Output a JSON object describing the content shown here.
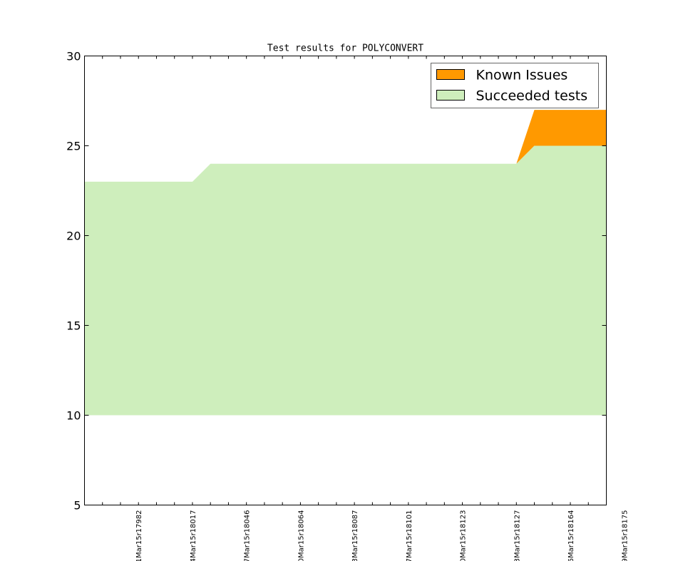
{
  "chart_data": {
    "type": "area",
    "title": "Test results for POLYCONVERT",
    "xlabel": "",
    "ylabel": "",
    "ylim": [
      5,
      30
    ],
    "yticks": [
      5,
      10,
      15,
      20,
      25,
      30
    ],
    "grid": false,
    "legend_position": "top-right",
    "x_index_range": [
      0,
      29
    ],
    "xtick_labels": [
      {
        "index": 3,
        "label": "1Mar15r17982"
      },
      {
        "index": 6,
        "label": "4Mar15r18017"
      },
      {
        "index": 9,
        "label": "7Mar15r18046"
      },
      {
        "index": 12,
        "label": "0Mar15r18064"
      },
      {
        "index": 15,
        "label": "3Mar15r18087"
      },
      {
        "index": 18,
        "label": "7Mar15r18101"
      },
      {
        "index": 21,
        "label": "0Mar15r18123"
      },
      {
        "index": 24,
        "label": "3Mar15r18127"
      },
      {
        "index": 27,
        "label": "6Mar15r18164"
      },
      {
        "index": 30,
        "label": "9Mar15r18175"
      }
    ],
    "x": [
      0,
      6,
      7,
      24,
      25,
      29
    ],
    "series": [
      {
        "name": "Succeeded tests",
        "color": "#ceeebc",
        "base": 10,
        "values": [
          23,
          23,
          24,
          24,
          25,
          25
        ]
      },
      {
        "name": "Known Issues",
        "color": "#ff9900",
        "base_series": "Succeeded tests",
        "values": [
          23,
          23,
          24,
          24,
          27,
          27
        ]
      }
    ]
  }
}
